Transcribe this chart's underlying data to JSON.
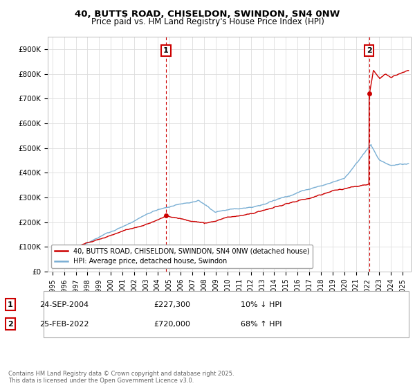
{
  "title": "40, BUTTS ROAD, CHISELDON, SWINDON, SN4 0NW",
  "subtitle": "Price paid vs. HM Land Registry's House Price Index (HPI)",
  "legend_label_red": "40, BUTTS ROAD, CHISELDON, SWINDON, SN4 0NW (detached house)",
  "legend_label_blue": "HPI: Average price, detached house, Swindon",
  "annotation1_date": "24-SEP-2004",
  "annotation1_price": "£227,300",
  "annotation1_hpi": "10% ↓ HPI",
  "annotation2_date": "25-FEB-2022",
  "annotation2_price": "£720,000",
  "annotation2_hpi": "68% ↑ HPI",
  "footer": "Contains HM Land Registry data © Crown copyright and database right 2025.\nThis data is licensed under the Open Government Licence v3.0.",
  "ylim": [
    0,
    950000
  ],
  "yticks": [
    0,
    100000,
    200000,
    300000,
    400000,
    500000,
    600000,
    700000,
    800000,
    900000
  ],
  "ytick_labels": [
    "£0",
    "£100K",
    "£200K",
    "£300K",
    "£400K",
    "£500K",
    "£600K",
    "£700K",
    "£800K",
    "£900K"
  ],
  "red_color": "#cc0000",
  "blue_color": "#7aafd4",
  "background_color": "#ffffff",
  "grid_color": "#dddddd",
  "sale1_year": 2004.73,
  "sale1_price": 227300,
  "sale2_year": 2022.12,
  "sale2_price": 720000,
  "xlim_left": 1994.6,
  "xlim_right": 2025.7
}
